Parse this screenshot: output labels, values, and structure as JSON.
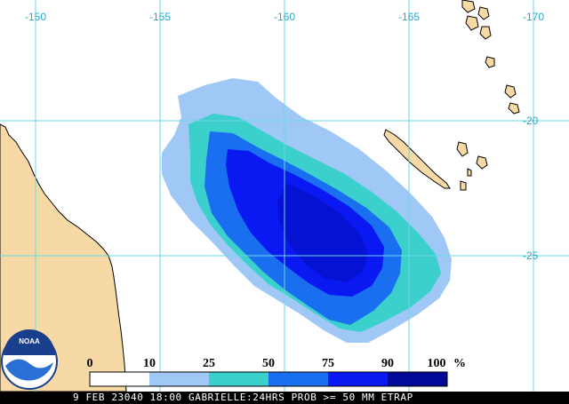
{
  "map": {
    "colors": {
      "land": "#f6d9a5",
      "coast": "#000000",
      "grid": "#6ad7e6",
      "grid_labels": "#2aa7c9"
    },
    "longitude_labels": [
      "-150",
      "-155",
      "-160",
      "-165",
      "-170"
    ],
    "latitude_labels": [
      "-20",
      "-25"
    ]
  },
  "legend": {
    "values": [
      "0",
      "10",
      "25",
      "50",
      "75",
      "90",
      "100"
    ],
    "unit": "%",
    "colors": [
      "#ffffff",
      "#9fc8f7",
      "#3cd0cc",
      "#1a6ff0",
      "#0a18f2",
      "#010a98"
    ]
  },
  "logo": {
    "text": "NOAA"
  },
  "footer": {
    "text": "9 FEB 23040 18:00 GABRIELLE:24HRS PROB >= 50 MM ETRAP"
  }
}
